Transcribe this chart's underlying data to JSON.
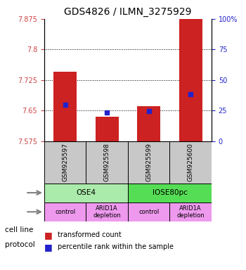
{
  "title": "GDS4826 / ILMN_3275929",
  "samples": [
    "GSM925597",
    "GSM925598",
    "GSM925599",
    "GSM925600"
  ],
  "red_values": [
    7.745,
    7.635,
    7.66,
    7.875
  ],
  "blue_values": [
    7.665,
    7.645,
    7.648,
    7.69
  ],
  "ymin": 7.575,
  "ymax": 7.875,
  "yticks": [
    7.575,
    7.65,
    7.725,
    7.8,
    7.875
  ],
  "ytick_labels": [
    "7.575",
    "7.65",
    "7.725",
    "7.8",
    "7.875"
  ],
  "right_yticks": [
    0,
    25,
    50,
    75,
    100
  ],
  "right_ytick_labels": [
    "0",
    "25",
    "50",
    "75",
    "100%"
  ],
  "cell_line_labels": [
    "OSE4",
    "IOSE80pc"
  ],
  "cell_line_colors": [
    "#90ee90",
    "#44cc44"
  ],
  "cell_line_spans": [
    [
      0,
      2
    ],
    [
      2,
      4
    ]
  ],
  "protocol_labels": [
    "control",
    "ARID1A\ndepletion",
    "control",
    "ARID1A\ndepletion"
  ],
  "protocol_color": "#ee82ee",
  "sample_bg_color": "#c8c8c8",
  "legend_red": "transformed count",
  "legend_blue": "percentile rank within the sample",
  "left_tick_color": "#cc4444",
  "right_tick_color": "#2222cc",
  "bar_color": "#cc2222",
  "blue_marker_color": "#2222cc"
}
